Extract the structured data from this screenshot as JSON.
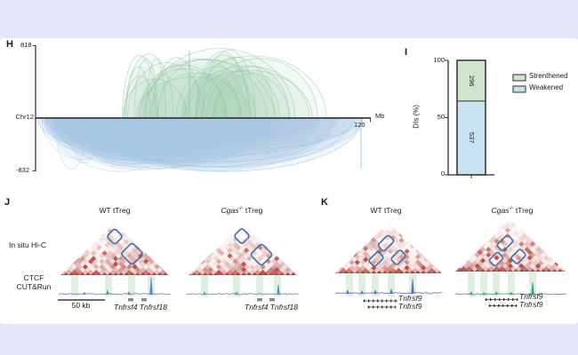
{
  "figure": {
    "colors": {
      "background": "#e4e7f7",
      "card": "#ffffff",
      "axis": "#3a3a3a",
      "arc_green": "#8fc5a5",
      "arc_blue": "#a3cce8",
      "bar_green": "#cfe5cd",
      "bar_blue": "#c9e4f1",
      "heatmap_red": "#b2382f",
      "highlight_blue": "#3a6fae",
      "track_blue": "#4a90c8",
      "track_navy": "#5577b3",
      "track_teal": "#2fa184",
      "band_green": "#cfe8cf",
      "gene_grey": "#8c8c8c"
    },
    "panel_h": {
      "label": "H",
      "y_max": "818",
      "chromosome": "Chr12",
      "y_min": "-832",
      "x_unit": "Mb",
      "x_max": "120"
    },
    "panel_i": {
      "label": "I",
      "ylabel": "DIs (%)",
      "tick_100": "100",
      "tick_50": "50",
      "tick_0": "0",
      "strengthened_value": "296",
      "weakened_value": "537",
      "legend": {
        "strengthened": "Strenthened",
        "weakened": "Weakened"
      }
    },
    "panel_j": {
      "label": "J",
      "left_title": "WT tTreg",
      "cgas": {
        "gene": "Cgas",
        "sup": "-/-",
        "rest": " tTreg"
      },
      "row_label_hic": "In situ Hi-C",
      "row_label_ctcf_line1": "CTCF",
      "row_label_ctcf_line2": "CUT&Run",
      "scale_bar": "50 kb",
      "genes": "Tnfrsf4 Tnfrsf18"
    },
    "panel_k": {
      "label": "K",
      "left_title": "WT tTreg",
      "cgas": {
        "gene": "Cgas",
        "sup": "-/-",
        "rest": " tTreg"
      },
      "gene": "Tnfrsf9"
    }
  },
  "chart_data": [
    {
      "type": "arc",
      "title": "Differential chromatin interaction arcs along Chr12",
      "x_axis": {
        "label": "Mb",
        "max": 120
      },
      "y_axis": {
        "upper_max": 818,
        "lower_min": -832,
        "chromosome": "Chr12"
      },
      "legend_position": "none",
      "series": [
        {
          "name": "Strengthened interactions (upper arcs)",
          "color": "#8fc5a5"
        },
        {
          "name": "Weakened interactions (lower arcs)",
          "color": "#a3cce8"
        }
      ]
    },
    {
      "type": "bar",
      "stacked": true,
      "ylabel": "DIs (%)",
      "ylim": [
        0,
        100
      ],
      "yticks": [
        0,
        50,
        100
      ],
      "grid": false,
      "legend_position": "right",
      "categories": [
        "DIs"
      ],
      "series": [
        {
          "name": "Strenthened",
          "counts": [
            296
          ],
          "values": [
            35.5
          ],
          "color": "#cfe5cd"
        },
        {
          "name": "Weakened",
          "counts": [
            537
          ],
          "values": [
            64.5
          ],
          "color": "#c9e4f1"
        }
      ]
    }
  ]
}
